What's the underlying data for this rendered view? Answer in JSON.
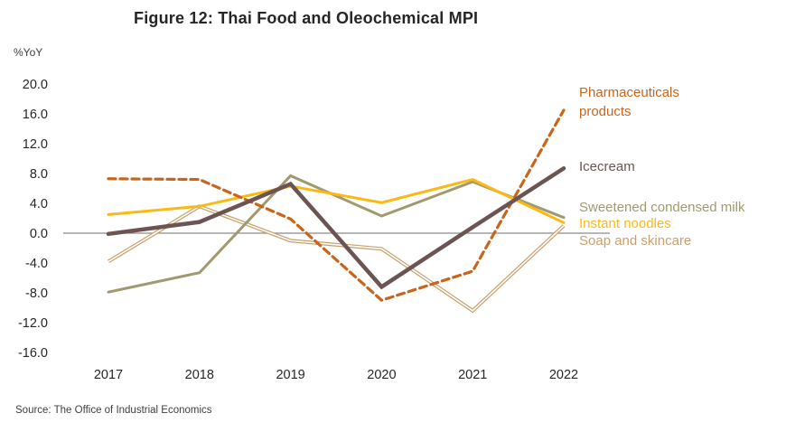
{
  "chart_data": {
    "type": "line",
    "title": "Figure 12: Thai Food and Oleochemical MPI",
    "ylabel": "%YoY",
    "xlabel": "",
    "categories": [
      "2017",
      "2018",
      "2019",
      "2020",
      "2021",
      "2022"
    ],
    "ylim": [
      -16,
      20
    ],
    "yticks": [
      20,
      16,
      12,
      8,
      4,
      0,
      -4,
      -8,
      -12,
      -16
    ],
    "ytick_labels": [
      "20.0",
      "16.0",
      "12.0",
      "8.0",
      "4.0",
      "0.0",
      "-4.0",
      "-8.0",
      "-12.0",
      "-16.0"
    ],
    "grid": false,
    "legend": "right, inline labels at line ends",
    "series": [
      {
        "name": "Pharmaceuticals products",
        "label_lines": [
          "Pharmaceuticals",
          "products"
        ],
        "color": "#C8651B",
        "style": "dashed",
        "values": [
          7.3,
          7.2,
          1.9,
          -9.0,
          -5.1,
          16.5
        ]
      },
      {
        "name": "Icecream",
        "label_lines": [
          "Icecream"
        ],
        "color": "#6B5452",
        "style": "thick",
        "values": [
          -0.1,
          1.5,
          6.6,
          -7.2,
          0.8,
          8.7
        ]
      },
      {
        "name": "Sweetened condensed milk",
        "label_lines": [
          "Sweetened condensed milk"
        ],
        "color": "#A19A6E",
        "style": "solid",
        "values": [
          -7.9,
          -5.3,
          7.7,
          2.3,
          6.9,
          2.1
        ]
      },
      {
        "name": "Instant noodles",
        "label_lines": [
          "Instant noodles"
        ],
        "color": "#FDB913",
        "style": "solid",
        "values": [
          2.5,
          3.6,
          6.3,
          4.1,
          7.2,
          1.4
        ]
      },
      {
        "name": "Soap and skincare",
        "label_lines": [
          "Soap and skincare"
        ],
        "color": "#C9A06B",
        "style": "double",
        "values": [
          -3.8,
          3.6,
          -1.0,
          -2.1,
          -10.4,
          1.0
        ]
      }
    ]
  },
  "source": "Source: The Office of Industrial Economics"
}
